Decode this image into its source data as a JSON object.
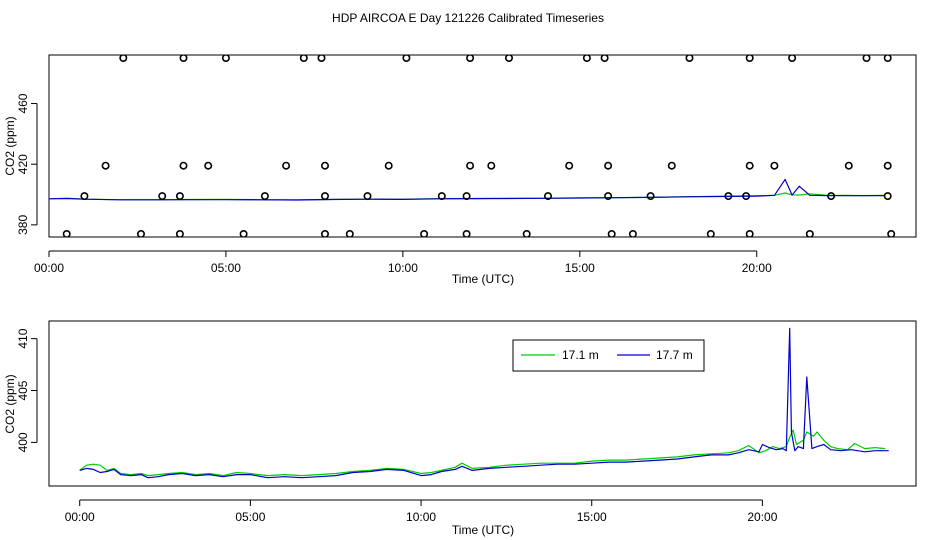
{
  "title": "HDP AIRCOA E  Day 121226  Calibrated Timeseries",
  "colors": {
    "series_17_1": "#00cc00",
    "series_17_7": "#0000cc",
    "points": "#000000",
    "axis": "#000000"
  },
  "chart_data": [
    {
      "type": "line",
      "title": "",
      "xlabel": "Time (UTC)",
      "ylabel": "CO2 (ppm)",
      "xlim": [
        0,
        24.5
      ],
      "ylim": [
        372,
        492
      ],
      "x_unit": "hours UTC",
      "x_ticks": [
        0,
        5,
        10,
        15,
        20
      ],
      "x_tick_labels": [
        "00:00",
        "05:00",
        "10:00",
        "15:00",
        "20:00"
      ],
      "y_ticks": [
        380,
        420,
        460
      ],
      "y_tick_labels": [
        "380",
        "420",
        "460"
      ],
      "grid": false,
      "legend": "none",
      "scatter": {
        "name": "",
        "marker": "open-circle",
        "x": [
          2.1,
          3.8,
          5.0,
          7.2,
          7.7,
          10.1,
          11.9,
          13.0,
          15.2,
          15.7,
          18.1,
          19.8,
          21.0,
          23.1,
          23.7,
          1.6,
          3.8,
          4.5,
          6.7,
          7.8,
          9.6,
          11.9,
          12.5,
          14.7,
          15.8,
          17.6,
          19.8,
          20.5,
          22.6,
          23.7,
          1.0,
          3.2,
          3.7,
          6.1,
          7.8,
          9.0,
          11.1,
          11.8,
          14.1,
          15.8,
          17.0,
          19.2,
          19.7,
          22.1,
          23.7,
          0.5,
          2.6,
          3.7,
          5.5,
          7.8,
          8.5,
          10.6,
          11.8,
          13.5,
          15.9,
          16.5,
          18.7,
          19.8,
          21.5,
          23.8
        ],
        "y": [
          490,
          490,
          490,
          490,
          490,
          490,
          490,
          490,
          490,
          490,
          490,
          490,
          490,
          490,
          490,
          419,
          419,
          419,
          419,
          419,
          419,
          419,
          419,
          419,
          419,
          419,
          419,
          419,
          419,
          419,
          399,
          399,
          399,
          399,
          399,
          399,
          399,
          399,
          399,
          399,
          399,
          399,
          399,
          399,
          399,
          374,
          374,
          374,
          374,
          374,
          374,
          374,
          374,
          374,
          374,
          374,
          374,
          374,
          374,
          374
        ]
      },
      "series": [
        {
          "name": "17.1 m",
          "x": [
            0,
            0.5,
            1,
            2,
            3,
            4,
            5,
            6,
            7,
            8,
            9,
            10,
            11,
            12,
            13,
            14,
            15,
            16,
            17,
            18,
            19,
            20,
            20.5,
            20.8,
            21.0,
            21.2,
            21.5,
            22,
            22.5,
            23,
            23.6
          ],
          "y": [
            397.2,
            397.6,
            397.0,
            396.6,
            396.6,
            396.7,
            396.8,
            396.6,
            396.5,
            396.8,
            397.0,
            396.9,
            397.3,
            397.4,
            397.5,
            397.6,
            397.8,
            398.0,
            398.2,
            398.6,
            398.9,
            399.2,
            399.5,
            401.0,
            399.8,
            399.6,
            400.5,
            399.5,
            399.4,
            399.3,
            399.5
          ]
        },
        {
          "name": "17.7 m",
          "x": [
            0,
            0.5,
            1,
            2,
            3,
            4,
            5,
            6,
            7,
            8,
            9,
            10,
            11,
            12,
            13,
            14,
            15,
            16,
            17,
            18,
            19,
            20,
            20.5,
            20.8,
            21.0,
            21.2,
            21.5,
            22,
            22.5,
            23,
            23.6
          ],
          "y": [
            397.2,
            397.4,
            396.9,
            396.5,
            396.5,
            396.6,
            396.6,
            396.5,
            396.4,
            396.7,
            396.9,
            396.8,
            397.2,
            397.3,
            397.4,
            397.5,
            397.7,
            397.9,
            398.1,
            398.5,
            398.7,
            399.0,
            399.4,
            410.0,
            399.6,
            405.5,
            399.5,
            399.3,
            399.2,
            399.2,
            399.3
          ]
        }
      ]
    },
    {
      "type": "line",
      "title": "",
      "xlabel": "Time (UTC)",
      "ylabel": "CO2 (ppm)",
      "xlim": [
        -0.9,
        24.5
      ],
      "ylim": [
        395.8,
        411.7
      ],
      "x_unit": "hours UTC",
      "x_ticks": [
        0,
        5,
        10,
        15,
        20
      ],
      "x_tick_labels": [
        "00:00",
        "05:00",
        "10:00",
        "15:00",
        "20:00"
      ],
      "y_ticks": [
        400,
        405,
        410
      ],
      "y_tick_labels": [
        "400",
        "405",
        "410"
      ],
      "grid": false,
      "legend": "top-right",
      "series": [
        {
          "name": "17.1 m",
          "x": [
            0,
            0.2,
            0.4,
            0.6,
            0.8,
            1.0,
            1.2,
            1.5,
            1.8,
            2.0,
            2.3,
            2.6,
            3.0,
            3.4,
            3.8,
            4.2,
            4.6,
            5.0,
            5.5,
            6.0,
            6.5,
            7.0,
            7.5,
            8.0,
            8.5,
            9.0,
            9.5,
            10.0,
            10.3,
            10.6,
            11.0,
            11.2,
            11.5,
            12.0,
            12.5,
            13.0,
            13.5,
            14.0,
            14.5,
            15.0,
            15.5,
            16.0,
            16.5,
            17.0,
            17.5,
            18.0,
            18.5,
            19.0,
            19.3,
            19.6,
            19.9,
            20.1,
            20.3,
            20.5,
            20.7,
            20.8,
            20.9,
            21.0,
            21.2,
            21.3,
            21.4,
            21.5,
            21.6,
            21.8,
            22.0,
            22.2,
            22.5,
            22.7,
            23.0,
            23.3,
            23.6
          ],
          "y": [
            397.3,
            397.8,
            397.9,
            397.8,
            397.3,
            397.5,
            397.0,
            396.9,
            397.0,
            396.8,
            396.9,
            397.0,
            397.1,
            396.9,
            397.0,
            396.8,
            397.1,
            397.0,
            396.8,
            396.9,
            396.8,
            396.9,
            397.0,
            397.2,
            397.3,
            397.5,
            397.4,
            397.0,
            397.1,
            397.3,
            397.6,
            398.0,
            397.5,
            397.6,
            397.8,
            397.9,
            398.0,
            398.0,
            398.0,
            398.2,
            398.3,
            398.3,
            398.4,
            398.5,
            398.6,
            398.8,
            398.9,
            399.0,
            399.2,
            399.7,
            399.0,
            399.2,
            399.6,
            399.4,
            399.6,
            400.5,
            401.2,
            399.8,
            400.2,
            401.0,
            400.8,
            400.6,
            401.0,
            400.2,
            399.6,
            399.4,
            399.3,
            399.9,
            399.4,
            399.5,
            399.4
          ]
        },
        {
          "name": "17.7 m",
          "x": [
            0,
            0.2,
            0.4,
            0.6,
            0.8,
            1.0,
            1.2,
            1.5,
            1.8,
            2.0,
            2.3,
            2.6,
            3.0,
            3.4,
            3.8,
            4.2,
            4.6,
            5.0,
            5.5,
            6.0,
            6.5,
            7.0,
            7.5,
            8.0,
            8.5,
            9.0,
            9.5,
            10.0,
            10.3,
            10.6,
            11.0,
            11.2,
            11.5,
            12.0,
            12.5,
            13.0,
            13.5,
            14.0,
            14.5,
            15.0,
            15.5,
            16.0,
            16.5,
            17.0,
            17.5,
            18.0,
            18.5,
            19.0,
            19.3,
            19.6,
            19.9,
            20.0,
            20.2,
            20.4,
            20.6,
            20.7,
            20.8,
            20.85,
            20.95,
            21.05,
            21.2,
            21.3,
            21.35,
            21.45,
            21.6,
            21.8,
            22.0,
            22.3,
            22.6,
            23.0,
            23.3,
            23.7
          ],
          "y": [
            397.3,
            397.5,
            397.4,
            397.1,
            397.2,
            397.4,
            396.9,
            396.8,
            396.9,
            396.6,
            396.7,
            396.9,
            397.0,
            396.8,
            396.9,
            396.7,
            396.9,
            396.9,
            396.6,
            396.7,
            396.6,
            396.7,
            396.8,
            397.1,
            397.2,
            397.4,
            397.3,
            396.8,
            396.9,
            397.2,
            397.4,
            397.7,
            397.3,
            397.5,
            397.6,
            397.7,
            397.8,
            397.9,
            397.9,
            398.0,
            398.1,
            398.1,
            398.2,
            398.3,
            398.4,
            398.6,
            398.8,
            398.8,
            399.0,
            399.3,
            399.1,
            399.8,
            399.5,
            399.3,
            399.4,
            399.2,
            411.0,
            401.0,
            399.2,
            399.6,
            399.4,
            406.3,
            404.0,
            399.4,
            399.6,
            399.8,
            399.3,
            399.2,
            399.3,
            399.1,
            399.2,
            399.2
          ]
        }
      ]
    }
  ]
}
